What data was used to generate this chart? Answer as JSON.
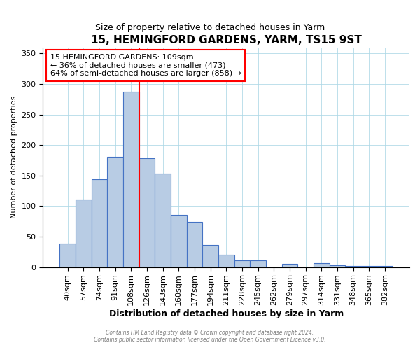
{
  "title": "15, HEMINGFORD GARDENS, YARM, TS15 9ST",
  "subtitle": "Size of property relative to detached houses in Yarm",
  "xlabel": "Distribution of detached houses by size in Yarm",
  "ylabel": "Number of detached properties",
  "bar_labels": [
    "40sqm",
    "57sqm",
    "74sqm",
    "91sqm",
    "108sqm",
    "126sqm",
    "143sqm",
    "160sqm",
    "177sqm",
    "194sqm",
    "211sqm",
    "228sqm",
    "245sqm",
    "262sqm",
    "279sqm",
    "297sqm",
    "314sqm",
    "331sqm",
    "348sqm",
    "365sqm",
    "382sqm"
  ],
  "bar_values": [
    38,
    111,
    144,
    181,
    287,
    178,
    153,
    85,
    74,
    36,
    20,
    11,
    11,
    0,
    5,
    0,
    6,
    3,
    2,
    2,
    2
  ],
  "bar_color": "#b8cce4",
  "bar_edge_color": "#4472c4",
  "ref_line_x": 4.5,
  "ref_line_color": "red",
  "annotation_title": "15 HEMINGFORD GARDENS: 109sqm",
  "annotation_line1": "← 36% of detached houses are smaller (473)",
  "annotation_line2": "64% of semi-detached houses are larger (858) →",
  "annotation_box_color": "red",
  "ylim": [
    0,
    360
  ],
  "yticks": [
    0,
    50,
    100,
    150,
    200,
    250,
    300,
    350
  ],
  "footer1": "Contains HM Land Registry data © Crown copyright and database right 2024.",
  "footer2": "Contains public sector information licensed under the Open Government Licence v3.0."
}
